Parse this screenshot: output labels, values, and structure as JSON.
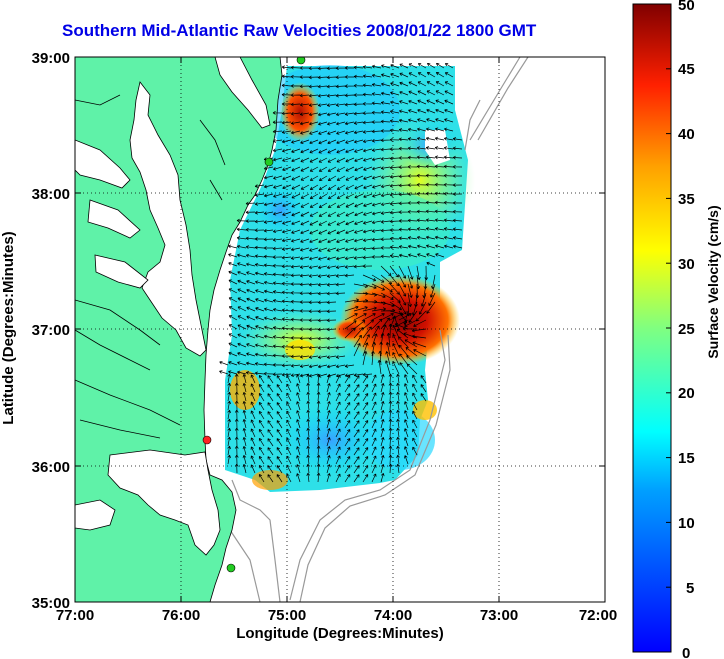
{
  "title": "Southern Mid-Atlantic Raw Velocities 2008/01/22 1800 GMT",
  "x_axis": {
    "label": "Longitude (Degrees:Minutes)",
    "ticks": [
      "77:00",
      "76:00",
      "75:00",
      "74:00",
      "73:00",
      "72:00"
    ]
  },
  "y_axis": {
    "label": "Latitude (Degrees:Minutes)",
    "ticks": [
      "39:00",
      "38:00",
      "37:00",
      "36:00",
      "35:00"
    ]
  },
  "colorbar": {
    "label": "Surface Velocity (cm/s)",
    "ticks": [
      "50",
      "45",
      "40",
      "35",
      "30",
      "25",
      "20",
      "15",
      "10",
      "5",
      "0"
    ],
    "colormap": "jet",
    "range": [
      0,
      50
    ]
  },
  "colors": {
    "land": "#5ff2a8",
    "ocean": "#ffffff",
    "title": "#0000e6",
    "grid": "#000000",
    "isobath": "#999999",
    "station": "#22cc22",
    "station_alt": "#ff2222"
  },
  "map": {
    "lon_range": [
      -77,
      -72
    ],
    "lat_range": [
      35,
      39
    ],
    "grid": "dotted",
    "vectors": "black arrows"
  }
}
